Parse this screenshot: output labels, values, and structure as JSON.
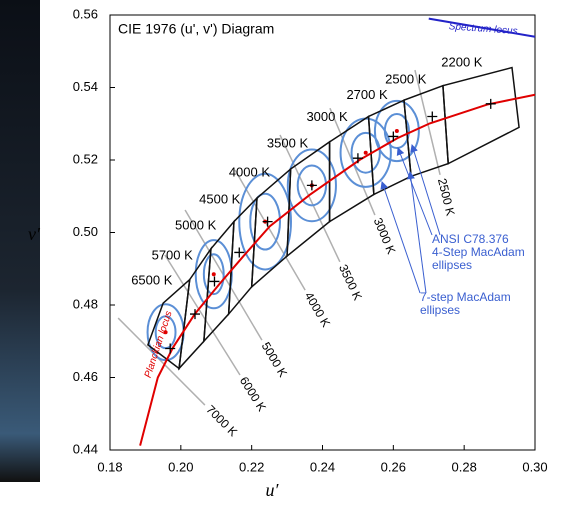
{
  "chart_data": {
    "type": "line",
    "title": "CIE 1976 (u', v') Diagram",
    "xlabel": "u′",
    "ylabel": "v′",
    "xlim": [
      0.18,
      0.3
    ],
    "ylim": [
      0.44,
      0.56
    ],
    "xticks": [
      0.18,
      {
        "value": 0.2,
        "label": "0.20"
      },
      0.22,
      0.24,
      0.26,
      0.28,
      {
        "value": 0.3,
        "label": "0.30"
      }
    ],
    "yticks": [
      0.44,
      0.46,
      0.48,
      {
        "value": 0.5,
        "label": "0.50"
      },
      0.52,
      0.54,
      0.56
    ],
    "series": [
      {
        "name": "Planckian locus",
        "color": "#e00000",
        "x": [
          0.1885,
          0.1935,
          0.1978,
          0.204,
          0.211,
          0.2176,
          0.2251,
          0.2364,
          0.2506,
          0.2611,
          0.2703,
          0.2865,
          0.3
        ],
        "values": [
          0.4412,
          0.46,
          0.4683,
          0.4776,
          0.4859,
          0.4934,
          0.5017,
          0.5104,
          0.5201,
          0.526,
          0.5301,
          0.5353,
          0.538
        ]
      },
      {
        "name": "Spectrum locus",
        "color": "#2323c8",
        "x": [
          0.27,
          0.3
        ],
        "values": [
          0.559,
          0.554
        ]
      }
    ],
    "ansi_quadrangles": {
      "labels": [
        "6500 K",
        "5700 K",
        "5000 K",
        "4500 K",
        "4000 K",
        "3500 K",
        "3000 K",
        "2700 K",
        "2500 K",
        "2200 K"
      ],
      "lower_u": [
        0.1907,
        0.1995,
        0.2065,
        0.2135,
        0.22,
        0.23,
        0.242,
        0.2545,
        0.265,
        0.2755,
        0.2955
      ],
      "lower_v": [
        0.469,
        0.4625,
        0.47,
        0.4775,
        0.485,
        0.4935,
        0.503,
        0.5105,
        0.5155,
        0.519,
        0.529
      ],
      "upper_u": [
        0.195,
        0.2025,
        0.2085,
        0.215,
        0.2215,
        0.231,
        0.242,
        0.253,
        0.263,
        0.274,
        0.2935
      ],
      "upper_v": [
        0.4805,
        0.487,
        0.4955,
        0.503,
        0.5095,
        0.5175,
        0.525,
        0.532,
        0.5365,
        0.5405,
        0.5455
      ],
      "nominal_u": [
        0.197,
        0.204,
        0.2095,
        0.2165,
        0.2245,
        0.237,
        0.25,
        0.26,
        0.271,
        0.2875
      ],
      "nominal_v": [
        0.468,
        0.4775,
        0.4865,
        0.4945,
        0.503,
        0.513,
        0.5205,
        0.5265,
        0.532,
        0.5355
      ]
    },
    "macadam_ellipses": {
      "u": [
        0.1957,
        0.2093,
        0.2238,
        0.237,
        0.2522,
        0.261
      ],
      "v": [
        0.4725,
        0.4885,
        0.503,
        0.513,
        0.522,
        0.528
      ],
      "a7": [
        0.0051,
        0.0051,
        0.0073,
        0.0068,
        0.0071,
        0.0062
      ],
      "b7": [
        0.0077,
        0.0094,
        0.0132,
        0.0099,
        0.0094,
        0.0083
      ],
      "a4": [
        0.0028,
        0.0028,
        0.0042,
        0.004,
        0.004,
        0.0034
      ],
      "b4": [
        0.0044,
        0.0055,
        0.0077,
        0.0055,
        0.0055,
        0.0047
      ]
    },
    "isotherms": {
      "labels": [
        "7000 K",
        "6000 K",
        "5000 K",
        "4000 K",
        "3500 K",
        "3000 K",
        "2500 K"
      ],
      "u1": [
        0.1823,
        0.1955,
        0.2012,
        0.2153,
        0.228,
        0.2421,
        0.2661
      ],
      "v1": [
        0.4764,
        0.4938,
        0.5062,
        0.5172,
        0.5269,
        0.5343,
        0.5448
      ],
      "u2": [
        0.2068,
        0.2167,
        0.2229,
        0.2351,
        0.2449,
        0.2548,
        0.2732
      ],
      "v2": [
        0.4524,
        0.4607,
        0.4703,
        0.4841,
        0.4919,
        0.5048,
        0.5159
      ]
    },
    "annotations": [
      [
        "ANSI C78.376",
        "4-Step MacAdam",
        "ellipses"
      ],
      [
        "7-step MacAdam",
        "ellipses"
      ]
    ]
  }
}
